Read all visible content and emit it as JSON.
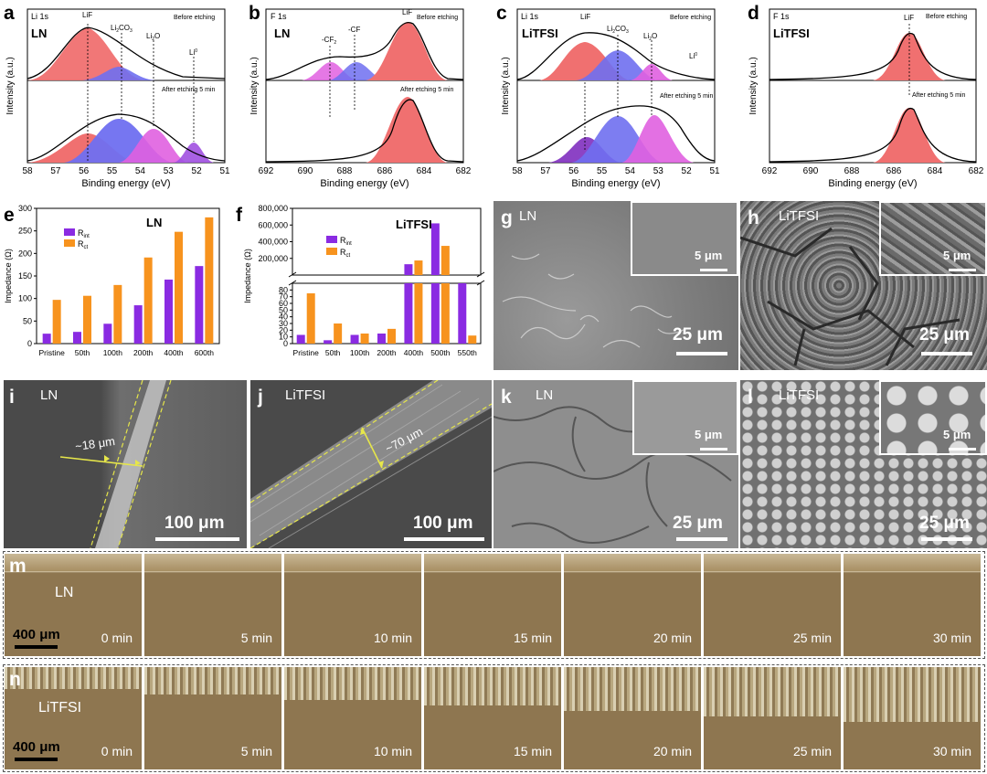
{
  "xps": {
    "before": "Before etching",
    "after": "After etching 5 min",
    "ylabel": "Intensity (a.u.)",
    "xlabel": "Binding energy (eV)",
    "li_ticks": [
      "58",
      "57",
      "56",
      "55",
      "54",
      "53",
      "52",
      "51"
    ],
    "f_ticks": [
      "692",
      "690",
      "688",
      "686",
      "684",
      "682"
    ],
    "panel_a": {
      "label": "a",
      "core": "Li 1s",
      "sample": "LN",
      "peaks": [
        "LiF",
        "Li2CO3",
        "Li2O",
        "Li0"
      ]
    },
    "panel_b": {
      "label": "b",
      "core": "F 1s",
      "sample": "LN",
      "peaks": [
        "-CF2",
        "-CF",
        "LiF"
      ]
    },
    "panel_c": {
      "label": "c",
      "core": "Li 1s",
      "sample": "LiTFSI",
      "peaks": [
        "LiF",
        "Li2CO3",
        "Li2O",
        "Li0"
      ]
    },
    "panel_d": {
      "label": "d",
      "core": "F 1s",
      "sample": "LiTFSI",
      "peaks": [
        "LiF"
      ]
    }
  },
  "colors": {
    "red": "#f07070",
    "blue": "#6f6ff0",
    "magenta": "#e060e0",
    "purple": "#7f2fbf",
    "orange": "#f39020",
    "rint": "#8a2be2",
    "rct": "#f7931e"
  },
  "chart_data": [
    {
      "type": "bar",
      "title": "LN",
      "panel": "e",
      "categories": [
        "Pristine",
        "50th",
        "100th",
        "200th",
        "400th",
        "600th"
      ],
      "series": [
        {
          "name": "Rint",
          "values": [
            22,
            26,
            44,
            85,
            142,
            172
          ]
        },
        {
          "name": "Rct",
          "values": [
            97,
            106,
            130,
            191,
            248,
            280
          ]
        }
      ],
      "ylabel": "Impedance (Ω)",
      "ylim": [
        0,
        300
      ],
      "yticks": [
        "0",
        "50",
        "100",
        "150",
        "200",
        "250",
        "300"
      ]
    },
    {
      "type": "bar",
      "title": "LiTFSI",
      "panel": "f",
      "categories": [
        "Pristine",
        "50th",
        "100th",
        "200th",
        "400th",
        "500th",
        "550th"
      ],
      "series": [
        {
          "name": "Rint",
          "values": [
            13,
            5,
            13,
            15,
            130000,
            620000,
            98
          ]
        },
        {
          "name": "Rct",
          "values": [
            75,
            30,
            15,
            22,
            175000,
            350000,
            12
          ]
        }
      ],
      "ylabel": "Impedance (Ω)",
      "ylim_lower": [
        0,
        90
      ],
      "ylim_upper": [
        90,
        800000
      ],
      "yticks_lower": [
        "0",
        "10",
        "20",
        "30",
        "40",
        "50",
        "60",
        "70",
        "80"
      ],
      "yticks_upper": [
        "200,000",
        "400,000",
        "600,000",
        "800,000"
      ]
    }
  ],
  "sem": {
    "g": {
      "label": "g",
      "sample": "LN",
      "inset_scale": "5 μm",
      "scale": "25 μm"
    },
    "h": {
      "label": "h",
      "sample": "LiTFSI",
      "inset_scale": "5 μm",
      "scale": "25 μm"
    },
    "i": {
      "label": "i",
      "sample": "LN",
      "thickness": "~18 μm",
      "scale": "100 μm"
    },
    "j": {
      "label": "j",
      "sample": "LiTFSI",
      "thickness": "~70 μm",
      "scale": "100 μm"
    },
    "k": {
      "label": "k",
      "sample": "LN",
      "inset_scale": "5 μm",
      "scale": "25 μm"
    },
    "l": {
      "label": "l",
      "sample": "LiTFSI",
      "inset_scale": "5 μm",
      "scale": "25 μm"
    }
  },
  "optical": {
    "m": {
      "label": "m",
      "sample": "LN",
      "scale": "400 μm"
    },
    "n": {
      "label": "n",
      "sample": "LiTFSI",
      "scale": "400 μm"
    },
    "times": [
      "0 min",
      "5 min",
      "10 min",
      "15 min",
      "20 min",
      "25 min",
      "30 min"
    ]
  }
}
